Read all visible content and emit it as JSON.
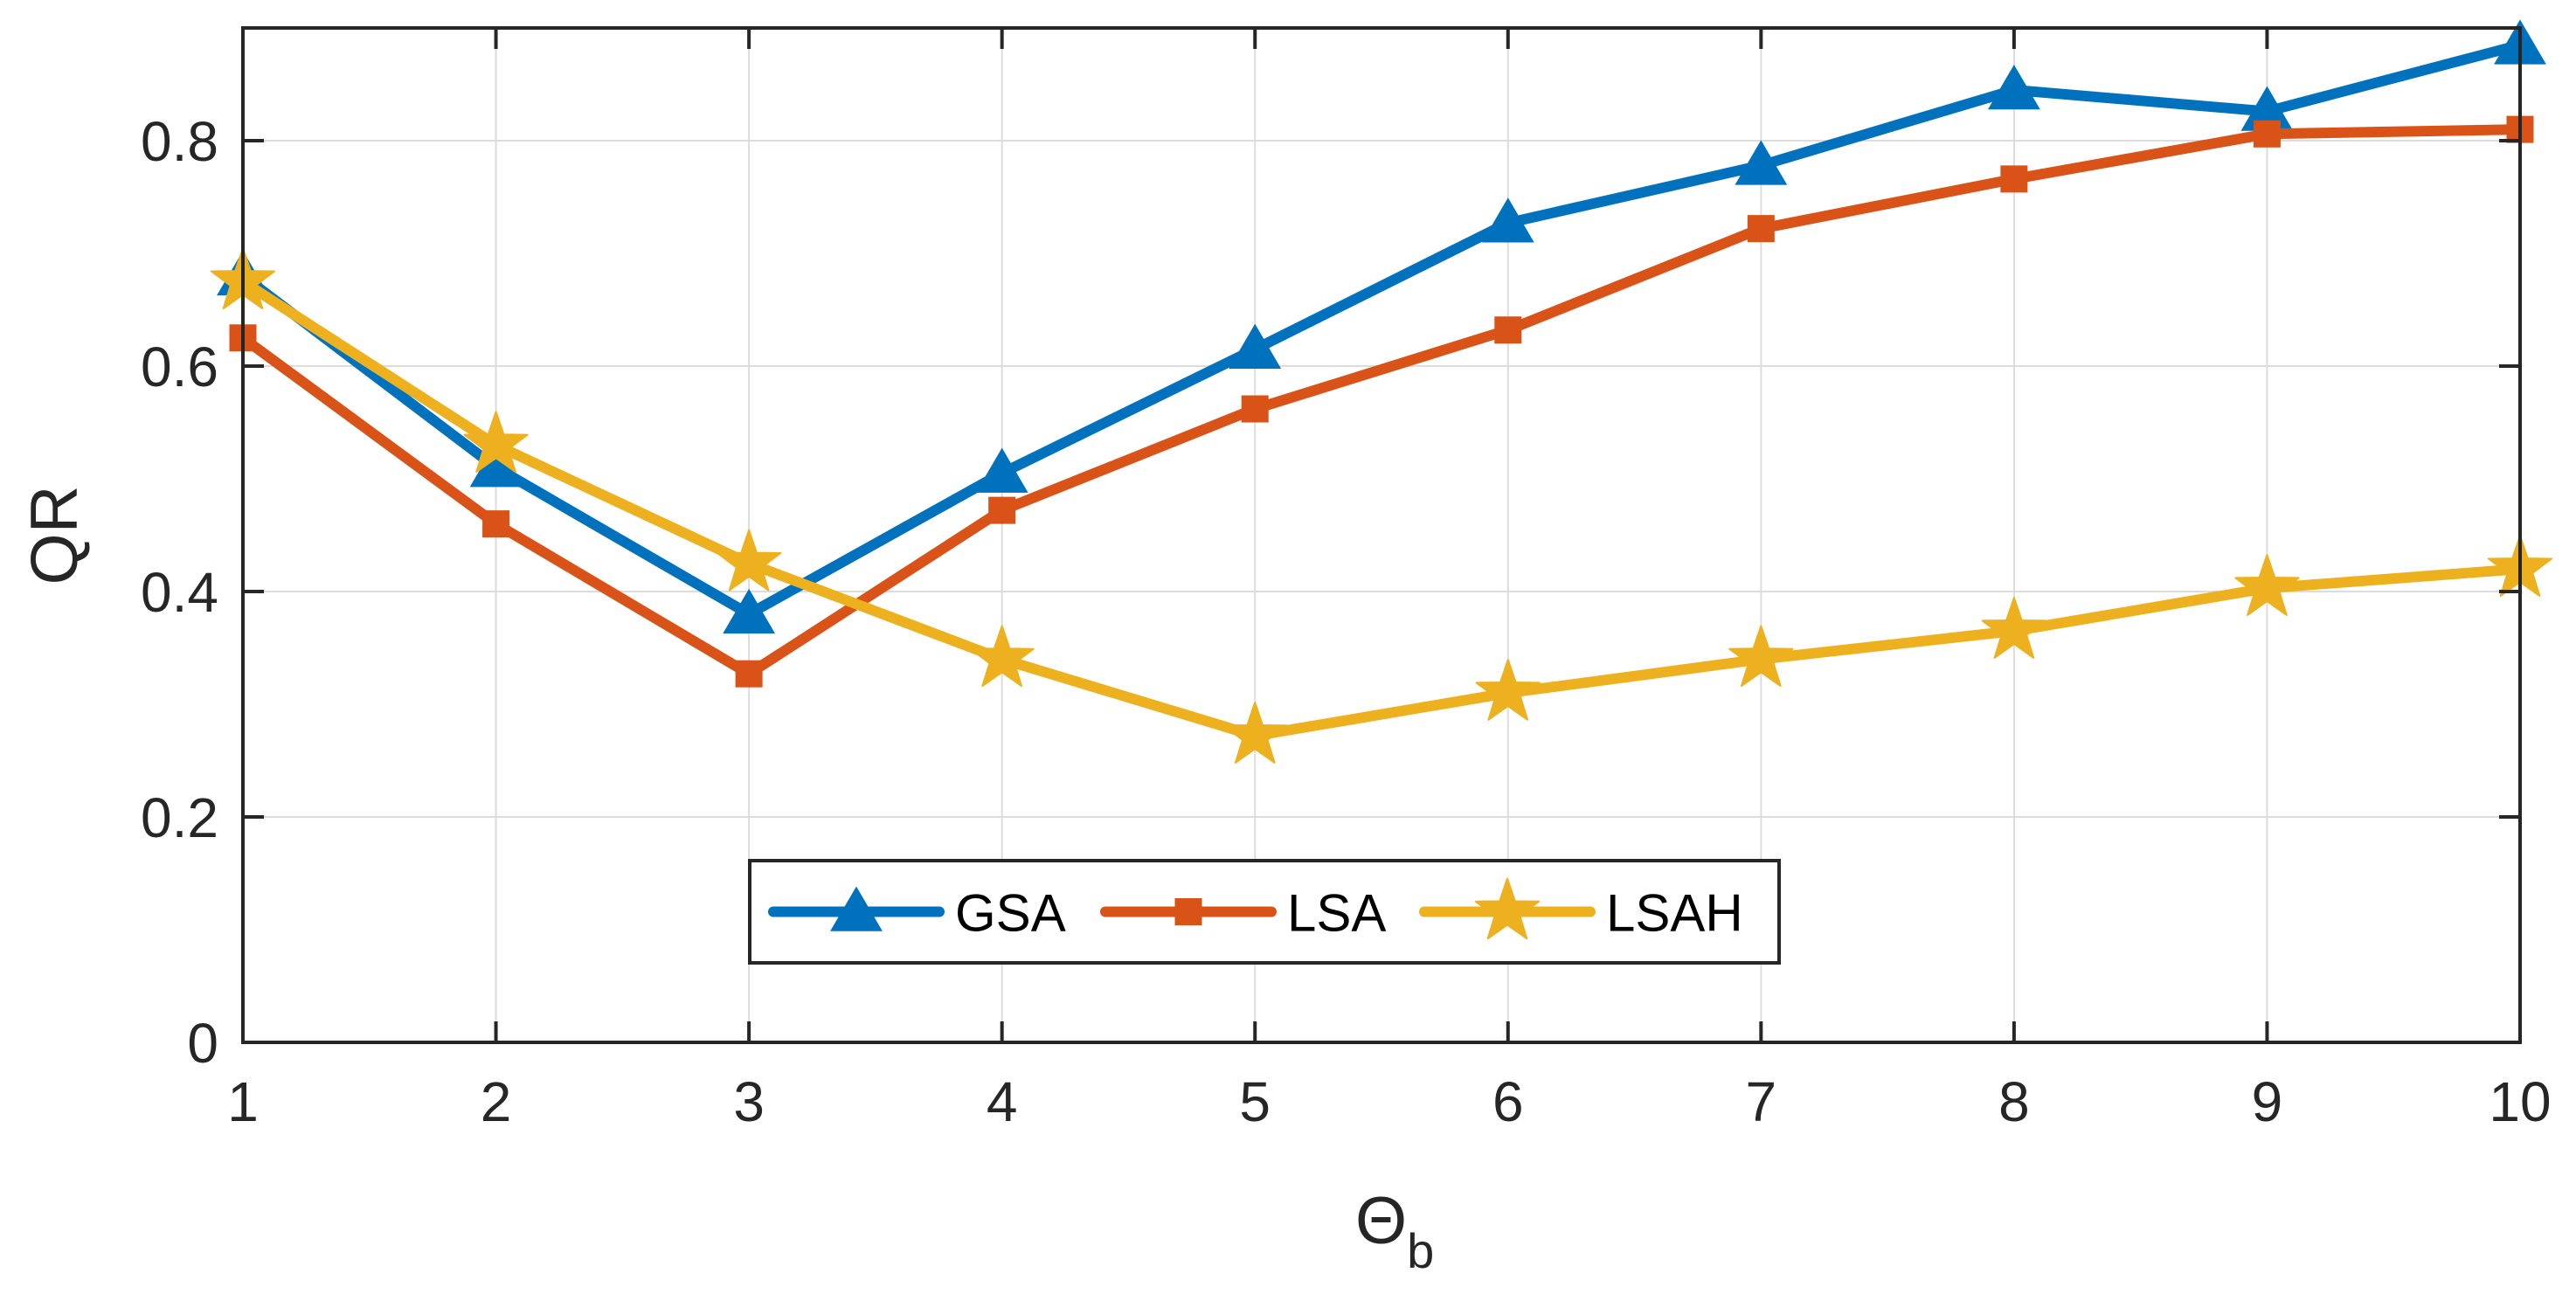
{
  "chart_data": {
    "type": "line",
    "title": "",
    "xlabel": "Θ",
    "xlabel_subscript": "b",
    "ylabel": "QR",
    "x": [
      1,
      2,
      3,
      4,
      5,
      6,
      7,
      8,
      9,
      10
    ],
    "xlim": [
      1,
      10
    ],
    "ylim": [
      0,
      0.9
    ],
    "xticks": [
      1,
      2,
      3,
      4,
      5,
      6,
      7,
      8,
      9,
      10
    ],
    "xtick_labels": [
      "1",
      "2",
      "3",
      "4",
      "5",
      "6",
      "7",
      "8",
      "9",
      "10"
    ],
    "yticks": [
      0,
      0.2,
      0.4,
      0.6,
      0.8
    ],
    "ytick_labels": [
      "0",
      "0.2",
      "0.4",
      "0.6",
      "0.8"
    ],
    "grid": true,
    "legend_position": "bottom-center",
    "legend_orientation": "horizontal",
    "series": [
      {
        "name": "GSA",
        "color": "#0072BD",
        "marker": "triangle",
        "values": [
          0.68,
          0.51,
          0.38,
          0.505,
          0.615,
          0.727,
          0.778,
          0.845,
          0.826,
          0.885
        ]
      },
      {
        "name": "LSA",
        "color": "#D95319",
        "marker": "square",
        "values": [
          0.625,
          0.46,
          0.327,
          0.472,
          0.562,
          0.632,
          0.722,
          0.766,
          0.806,
          0.81
        ]
      },
      {
        "name": "LSAH",
        "color": "#EDB120",
        "marker": "star",
        "values": [
          0.675,
          0.53,
          0.425,
          0.34,
          0.272,
          0.31,
          0.34,
          0.365,
          0.403,
          0.42
        ]
      }
    ]
  }
}
